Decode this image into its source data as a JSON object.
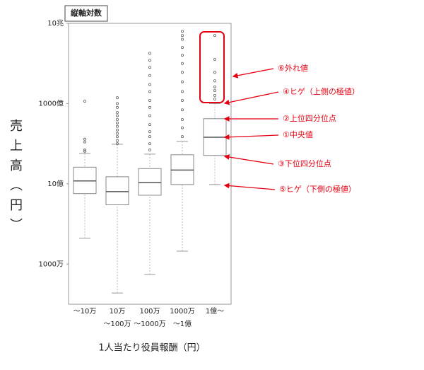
{
  "chart_data": {
    "type": "box",
    "scale_note": "縦軸対数",
    "ylabel": "売上高（円）",
    "xlabel": "1人当たり役員報酬（円）",
    "log_scale": true,
    "ylim": [
      1000000,
      10000000000000
    ],
    "yticks": [
      {
        "value": 10000000000000,
        "label": "10兆"
      },
      {
        "value": 100000000000,
        "label": "1000億"
      },
      {
        "value": 1000000000,
        "label": "10億"
      },
      {
        "value": 10000000,
        "label": "1000万"
      }
    ],
    "categories": [
      [
        "～10万"
      ],
      [
        "10万",
        "～100万"
      ],
      [
        "100万",
        "～1000万"
      ],
      [
        "1000万",
        "～1億"
      ],
      [
        "1億～"
      ]
    ],
    "boxes": [
      {
        "whisker_low": 44000000,
        "q1": 570000000,
        "median": 1180000000,
        "q3": 2600000000,
        "whisker_high": 5700000000,
        "outliers": [
          6500000000,
          7000000000,
          11000000000,
          13000000000,
          115000000000
        ]
      },
      {
        "whisker_low": 1900000,
        "q1": 300000000,
        "median": 640000000,
        "q3": 1500000000,
        "whisker_high": 9700000000,
        "outliers": [
          10000000000,
          12000000000,
          15000000000,
          18000000000,
          22000000000,
          27000000000,
          33000000000,
          40000000000,
          50000000000,
          60000000000,
          80000000000,
          100000000000,
          140000000000
        ]
      },
      {
        "whisker_low": 5500000,
        "q1": 520000000,
        "median": 1080000000,
        "q3": 2400000000,
        "whisker_high": 5500000000,
        "outliers": [
          7000000000,
          10000000000,
          15000000000,
          20000000000,
          30000000000,
          50000000000,
          80000000000,
          120000000000,
          200000000000,
          300000000000,
          500000000000,
          800000000000,
          1200000000000,
          1800000000000
        ]
      },
      {
        "whisker_low": 21000000,
        "q1": 960000000,
        "median": 2200000000,
        "q3": 5300000000,
        "whisker_high": 11400000000,
        "outliers": [
          15000000000,
          25000000000,
          40000000000,
          70000000000,
          120000000000,
          200000000000,
          350000000000,
          600000000000,
          1000000000000,
          1600000000000,
          2500000000000,
          4000000000000,
          5000000000000,
          6300000000000
        ]
      },
      {
        "whisker_low": 960000000,
        "q1": 5100000000,
        "median": 14500000000,
        "q3": 42000000000,
        "whisker_high": 100000000000,
        "outliers": [
          130000000000,
          160000000000,
          210000000000,
          260000000000,
          370000000000,
          600000000000,
          1270000000000,
          5000000000000
        ]
      }
    ],
    "color": "#888888",
    "annotations": [
      "⑥外れ値",
      "④ヒゲ（上側の極値）",
      "②上位四分位点",
      "①中央値",
      "③下位四分位点",
      "⑤ヒゲ（下側の極値）"
    ],
    "annotation_color": "#e60012"
  }
}
